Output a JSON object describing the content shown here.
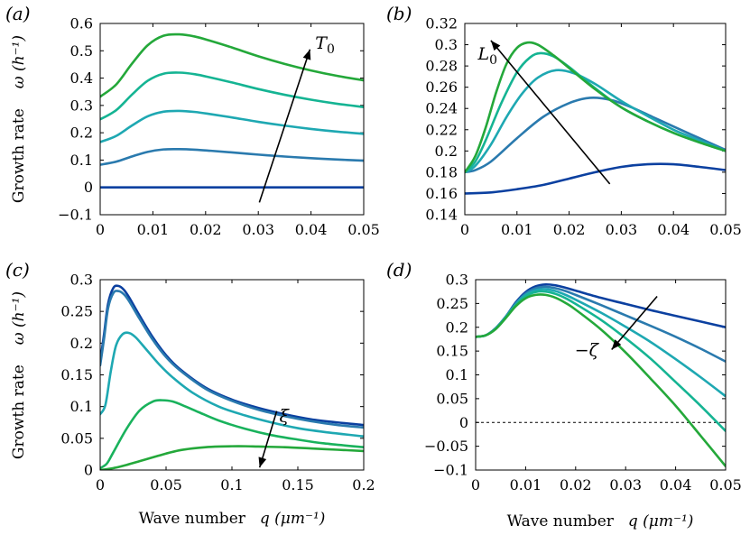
{
  "y_axis_label": "Growth rate",
  "x_axis_label": "Wave number",
  "y_units": "ω (h⁻¹)",
  "x_units": "q (μm⁻¹)",
  "colors": {
    "c1": "#0b40a0",
    "c2": "#2a7aae",
    "c3": "#1ea8b2",
    "c4": "#15b493",
    "c5": "#19b25c",
    "c6": "#24a83a"
  },
  "chart_data": [
    {
      "panel": "(a)",
      "type": "line",
      "xlim": [
        0,
        0.05
      ],
      "ylim": [
        -0.1,
        0.6
      ],
      "xticks": [
        "0",
        "0.01",
        "0.02",
        "0.03",
        "0.04",
        "0.05"
      ],
      "yticks": [
        "−0.1",
        "0",
        "0.1",
        "0.2",
        "0.3",
        "0.4",
        "0.5",
        "0.6"
      ],
      "xlabel": "",
      "ylabel": "Growth rate ω (h⁻¹)",
      "annotation": {
        "text": "T",
        "sub": "0",
        "arrow_from": [
          0.0302,
          -0.055
        ],
        "arrow_to": [
          0.0398,
          0.505
        ],
        "label_at": [
          0.0408,
          0.53
        ]
      },
      "series": [
        {
          "color": "c1",
          "x": [
            0,
            0.01,
            0.02,
            0.03,
            0.04,
            0.05
          ],
          "y": [
            0,
            0,
            0,
            0,
            0,
            0
          ]
        },
        {
          "color": "c2",
          "x": [
            0,
            0.003,
            0.006,
            0.009,
            0.012,
            0.015,
            0.018,
            0.021,
            0.025,
            0.03,
            0.035,
            0.04,
            0.045,
            0.05
          ],
          "y": [
            0.083,
            0.094,
            0.113,
            0.13,
            0.139,
            0.14,
            0.138,
            0.134,
            0.128,
            0.12,
            0.113,
            0.107,
            0.102,
            0.098
          ]
        },
        {
          "color": "c3",
          "x": [
            0,
            0.003,
            0.006,
            0.009,
            0.012,
            0.015,
            0.018,
            0.021,
            0.025,
            0.03,
            0.035,
            0.04,
            0.045,
            0.05
          ],
          "y": [
            0.166,
            0.188,
            0.226,
            0.26,
            0.277,
            0.28,
            0.276,
            0.268,
            0.256,
            0.24,
            0.226,
            0.214,
            0.204,
            0.196
          ]
        },
        {
          "color": "c4",
          "x": [
            0,
            0.003,
            0.006,
            0.009,
            0.012,
            0.015,
            0.018,
            0.021,
            0.025,
            0.03,
            0.035,
            0.04,
            0.045,
            0.05
          ],
          "y": [
            0.249,
            0.282,
            0.339,
            0.39,
            0.416,
            0.42,
            0.414,
            0.402,
            0.384,
            0.36,
            0.339,
            0.321,
            0.306,
            0.294
          ]
        },
        {
          "color": "c6",
          "x": [
            0,
            0.003,
            0.006,
            0.009,
            0.012,
            0.015,
            0.018,
            0.021,
            0.025,
            0.03,
            0.035,
            0.04,
            0.045,
            0.05
          ],
          "y": [
            0.332,
            0.376,
            0.452,
            0.52,
            0.555,
            0.56,
            0.552,
            0.536,
            0.512,
            0.48,
            0.452,
            0.428,
            0.408,
            0.392
          ]
        }
      ]
    },
    {
      "panel": "(b)",
      "type": "line",
      "xlim": [
        0,
        0.05
      ],
      "ylim": [
        0.14,
        0.32
      ],
      "xticks": [
        "0",
        "0.01",
        "0.02",
        "0.03",
        "0.04",
        "0.05"
      ],
      "yticks": [
        "0.14",
        "0.16",
        "0.18",
        "0.2",
        "0.22",
        "0.24",
        "0.26",
        "0.28",
        "0.3",
        "0.32"
      ],
      "xlabel": "",
      "ylabel": "",
      "annotation": {
        "text": "L",
        "sub": "0",
        "arrow_from": [
          0.0278,
          0.169
        ],
        "arrow_to": [
          0.005,
          0.304
        ],
        "label_at": [
          0.0025,
          0.292
        ]
      },
      "series": [
        {
          "color": "c1",
          "x": [
            0,
            0.005,
            0.01,
            0.015,
            0.02,
            0.025,
            0.03,
            0.035,
            0.04,
            0.045,
            0.05
          ],
          "y": [
            0.16,
            0.161,
            0.164,
            0.168,
            0.174,
            0.18,
            0.185,
            0.1875,
            0.1875,
            0.185,
            0.182
          ]
        },
        {
          "color": "c2",
          "x": [
            0,
            0.002,
            0.005,
            0.01,
            0.015,
            0.02,
            0.024,
            0.028,
            0.032,
            0.036,
            0.04,
            0.045,
            0.05
          ],
          "y": [
            0.18,
            0.182,
            0.19,
            0.212,
            0.232,
            0.245,
            0.25,
            0.248,
            0.241,
            0.232,
            0.223,
            0.212,
            0.201
          ]
        },
        {
          "color": "c3",
          "x": [
            0,
            0.002,
            0.005,
            0.008,
            0.011,
            0.014,
            0.0175,
            0.021,
            0.025,
            0.03,
            0.035,
            0.04,
            0.045,
            0.05
          ],
          "y": [
            0.18,
            0.186,
            0.206,
            0.232,
            0.254,
            0.269,
            0.276,
            0.273,
            0.263,
            0.247,
            0.233,
            0.22,
            0.21,
            0.2
          ]
        },
        {
          "color": "c4",
          "x": [
            0,
            0.002,
            0.004,
            0.007,
            0.01,
            0.0125,
            0.0145,
            0.017,
            0.02,
            0.025,
            0.03,
            0.035,
            0.04,
            0.045,
            0.05
          ],
          "y": [
            0.18,
            0.19,
            0.21,
            0.245,
            0.274,
            0.288,
            0.292,
            0.289,
            0.279,
            0.259,
            0.241,
            0.228,
            0.217,
            0.208,
            0.2
          ]
        },
        {
          "color": "c6",
          "x": [
            0,
            0.002,
            0.004,
            0.006,
            0.008,
            0.01,
            0.012,
            0.014,
            0.017,
            0.02,
            0.025,
            0.03,
            0.035,
            0.04,
            0.045,
            0.05
          ],
          "y": [
            0.18,
            0.195,
            0.222,
            0.255,
            0.282,
            0.297,
            0.302,
            0.3,
            0.29,
            0.278,
            0.258,
            0.241,
            0.228,
            0.217,
            0.208,
            0.2
          ]
        }
      ]
    },
    {
      "panel": "(c)",
      "type": "line",
      "xlim": [
        0,
        0.2
      ],
      "ylim": [
        0,
        0.3
      ],
      "xticks": [
        "0",
        "0.05",
        "0.1",
        "0.15",
        "0.2"
      ],
      "yticks": [
        "0",
        "0.05",
        "0.1",
        "0.15",
        "0.2",
        "0.25",
        "0.3"
      ],
      "xlabel": "Wave number q (μm⁻¹)",
      "ylabel": "Growth rate ω (h⁻¹)",
      "annotation": {
        "text": "ξ",
        "sub": "",
        "arrow_from": [
          0.134,
          0.093
        ],
        "arrow_to": [
          0.121,
          0.004
        ],
        "label_at": [
          0.136,
          0.086
        ]
      },
      "series": [
        {
          "color": "c1",
          "x": [
            0,
            0.003,
            0.006,
            0.01,
            0.014,
            0.018,
            0.022,
            0.03,
            0.04,
            0.05,
            0.06,
            0.08,
            0.1,
            0.12,
            0.14,
            0.16,
            0.18,
            0.2
          ],
          "y": [
            0.17,
            0.215,
            0.262,
            0.287,
            0.29,
            0.284,
            0.272,
            0.243,
            0.209,
            0.181,
            0.16,
            0.13,
            0.111,
            0.098,
            0.088,
            0.08,
            0.075,
            0.071
          ]
        },
        {
          "color": "c2",
          "x": [
            0,
            0.003,
            0.006,
            0.01,
            0.014,
            0.018,
            0.022,
            0.03,
            0.04,
            0.05,
            0.06,
            0.08,
            0.1,
            0.12,
            0.14,
            0.16,
            0.18,
            0.2
          ],
          "y": [
            0.165,
            0.208,
            0.255,
            0.279,
            0.282,
            0.277,
            0.266,
            0.238,
            0.205,
            0.178,
            0.158,
            0.128,
            0.109,
            0.095,
            0.085,
            0.077,
            0.071,
            0.067
          ]
        },
        {
          "color": "c3",
          "x": [
            0,
            0.004,
            0.008,
            0.012,
            0.017,
            0.022,
            0.027,
            0.035,
            0.045,
            0.055,
            0.07,
            0.09,
            0.11,
            0.13,
            0.15,
            0.17,
            0.2
          ],
          "y": [
            0.088,
            0.103,
            0.155,
            0.196,
            0.214,
            0.216,
            0.209,
            0.19,
            0.166,
            0.146,
            0.122,
            0.1,
            0.086,
            0.075,
            0.066,
            0.06,
            0.053
          ]
        },
        {
          "color": "c5",
          "x": [
            0,
            0.005,
            0.01,
            0.02,
            0.03,
            0.04,
            0.047,
            0.055,
            0.065,
            0.075,
            0.09,
            0.11,
            0.13,
            0.15,
            0.17,
            0.2
          ],
          "y": [
            0.003,
            0.01,
            0.028,
            0.065,
            0.094,
            0.108,
            0.11,
            0.108,
            0.1,
            0.091,
            0.078,
            0.065,
            0.055,
            0.048,
            0.042,
            0.036
          ]
        },
        {
          "color": "c6",
          "x": [
            0,
            0.01,
            0.02,
            0.03,
            0.04,
            0.05,
            0.06,
            0.07,
            0.08,
            0.09,
            0.1,
            0.11,
            0.12,
            0.14,
            0.16,
            0.18,
            0.2
          ],
          "y": [
            0.0,
            0.003,
            0.008,
            0.014,
            0.02,
            0.026,
            0.031,
            0.034,
            0.036,
            0.037,
            0.0375,
            0.0375,
            0.037,
            0.036,
            0.034,
            0.032,
            0.03
          ]
        }
      ]
    },
    {
      "panel": "(d)",
      "type": "line",
      "xlim": [
        0,
        0.05
      ],
      "ylim": [
        -0.1,
        0.3
      ],
      "xticks": [
        "0",
        "0.01",
        "0.02",
        "0.03",
        "0.04",
        "0.05"
      ],
      "yticks": [
        "−0.1",
        "−0.05",
        "0",
        "0.05",
        "0.1",
        "0.15",
        "0.2",
        "0.25",
        "0.3"
      ],
      "xlabel": "Wave number q (μm⁻¹)",
      "ylabel": "",
      "reference_line": 0,
      "annotation": {
        "text": "−ζ",
        "sub": "",
        "arrow_from": [
          0.0363,
          0.265
        ],
        "arrow_to": [
          0.0272,
          0.153
        ],
        "label_at": [
          0.0198,
          0.153
        ]
      },
      "series": [
        {
          "color": "c1",
          "x": [
            0,
            0.002,
            0.004,
            0.006,
            0.008,
            0.01,
            0.012,
            0.014,
            0.016,
            0.018,
            0.02,
            0.025,
            0.03,
            0.035,
            0.04,
            0.045,
            0.05
          ],
          "y": [
            0.18,
            0.183,
            0.198,
            0.222,
            0.252,
            0.274,
            0.286,
            0.29,
            0.288,
            0.283,
            0.277,
            0.262,
            0.249,
            0.236,
            0.224,
            0.212,
            0.2
          ]
        },
        {
          "color": "c2",
          "x": [
            0,
            0.002,
            0.004,
            0.006,
            0.008,
            0.01,
            0.012,
            0.014,
            0.016,
            0.018,
            0.02,
            0.025,
            0.03,
            0.035,
            0.04,
            0.045,
            0.05
          ],
          "y": [
            0.18,
            0.183,
            0.198,
            0.222,
            0.25,
            0.271,
            0.282,
            0.285,
            0.282,
            0.276,
            0.268,
            0.247,
            0.225,
            0.203,
            0.18,
            0.155,
            0.128
          ]
        },
        {
          "color": "c3",
          "x": [
            0,
            0.002,
            0.004,
            0.006,
            0.008,
            0.01,
            0.012,
            0.014,
            0.016,
            0.018,
            0.02,
            0.025,
            0.03,
            0.035,
            0.04,
            0.045,
            0.05
          ],
          "y": [
            0.18,
            0.183,
            0.197,
            0.221,
            0.248,
            0.268,
            0.278,
            0.28,
            0.276,
            0.268,
            0.258,
            0.231,
            0.201,
            0.169,
            0.133,
            0.095,
            0.055
          ]
        },
        {
          "color": "c4",
          "x": [
            0,
            0.002,
            0.004,
            0.006,
            0.008,
            0.01,
            0.012,
            0.014,
            0.016,
            0.018,
            0.02,
            0.025,
            0.03,
            0.035,
            0.04,
            0.045,
            0.05
          ],
          "y": [
            0.18,
            0.183,
            0.197,
            0.22,
            0.246,
            0.265,
            0.274,
            0.275,
            0.27,
            0.261,
            0.249,
            0.216,
            0.177,
            0.134,
            0.085,
            0.035,
            -0.018
          ]
        },
        {
          "color": "c6",
          "x": [
            0,
            0.002,
            0.004,
            0.006,
            0.008,
            0.01,
            0.012,
            0.014,
            0.016,
            0.018,
            0.02,
            0.025,
            0.03,
            0.035,
            0.04,
            0.045,
            0.05
          ],
          "y": [
            0.18,
            0.183,
            0.196,
            0.219,
            0.244,
            0.261,
            0.268,
            0.268,
            0.262,
            0.251,
            0.237,
            0.196,
            0.147,
            0.092,
            0.035,
            -0.028,
            -0.092
          ]
        }
      ]
    }
  ]
}
